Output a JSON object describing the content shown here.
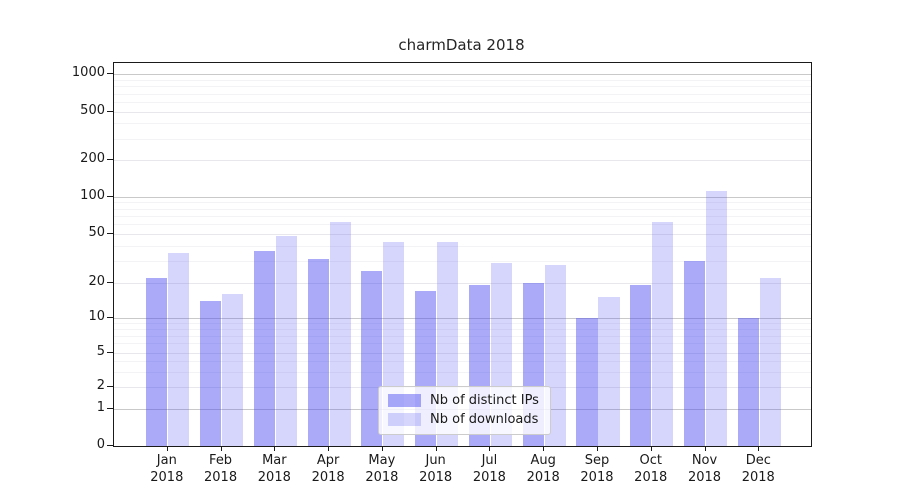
{
  "chart_data": {
    "type": "bar",
    "title": "charmData 2018",
    "categories": [
      "Jan",
      "Feb",
      "Mar",
      "Apr",
      "May",
      "Jun",
      "Jul",
      "Aug",
      "Sep",
      "Oct",
      "Nov",
      "Dec"
    ],
    "year_label": "2018",
    "series": [
      {
        "key": "ips",
        "name": "Nb of distinct IPs",
        "base_color_hex": "#4646f0",
        "alpha": 0.46,
        "color": "rgba(70,70,240,0.46)",
        "values": [
          22,
          14,
          36,
          31,
          25,
          17,
          19,
          20,
          10,
          19,
          30,
          10
        ]
      },
      {
        "key": "downloads",
        "name": "Nb of downloads",
        "base_color_hex": "#4646f0",
        "alpha": 0.22,
        "color": "rgba(70,70,240,0.22)",
        "values": [
          35,
          16,
          48,
          62,
          43,
          43,
          29,
          28,
          15,
          62,
          112,
          22
        ]
      }
    ],
    "xlabel": "",
    "ylabel": "",
    "y_axis": {
      "scale": "symlog-like",
      "ticks": [
        0,
        1,
        2,
        5,
        10,
        20,
        50,
        100,
        200,
        500,
        1000
      ],
      "anchors": [
        {
          "v": 0,
          "f": 0.0
        },
        {
          "v": 1,
          "f": 0.0974
        },
        {
          "v": 2,
          "f": 0.154
        },
        {
          "v": 5,
          "f": 0.2436
        },
        {
          "v": 10,
          "f": 0.335
        },
        {
          "v": 20,
          "f": 0.4264
        },
        {
          "v": 50,
          "f": 0.5543
        },
        {
          "v": 100,
          "f": 0.6509
        },
        {
          "v": 200,
          "f": 0.7467
        },
        {
          "v": 500,
          "f": 0.8728
        },
        {
          "v": 1000,
          "f": 0.9705
        }
      ],
      "major_gridline_values": [
        1,
        10,
        100,
        1000
      ],
      "minor_gridlines": [
        3,
        4,
        6,
        7,
        8,
        9,
        30,
        40,
        60,
        70,
        80,
        90,
        300,
        400,
        600,
        700,
        800,
        900
      ]
    },
    "grid": true,
    "legend_position": "bottom-center"
  }
}
